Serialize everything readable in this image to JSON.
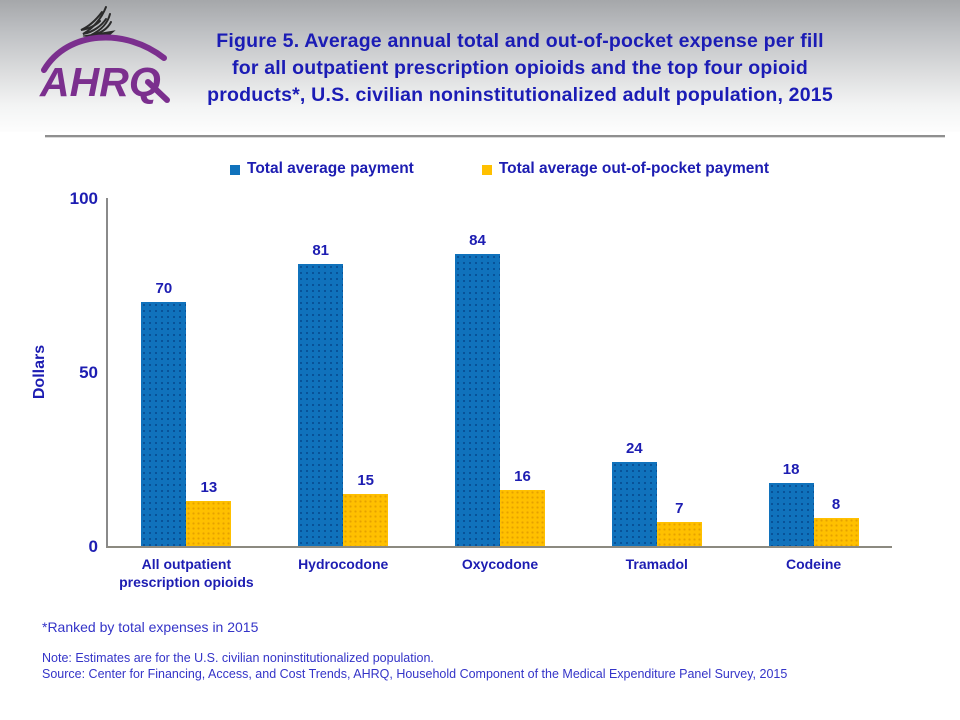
{
  "slide": {
    "title_lines": [
      "Figure 5. Average annual total and out-of-pocket expense per fill",
      "for all outpatient prescription opioids and the top four opioid",
      "products*, U.S. civilian noninstitutionalized adult population, 2015"
    ]
  },
  "logo": {
    "org_abbr": "AHRQ"
  },
  "legend": {
    "items": [
      {
        "label": "Total average payment",
        "color": "#1072bc"
      },
      {
        "label": "Total average out-of-pocket payment",
        "color": "#ffc000"
      }
    ]
  },
  "chart_data": {
    "type": "bar",
    "title": "Figure 5. Average annual total and out-of-pocket expense per fill for all outpatient prescription opioids and the top four opioid products*, U.S. civilian noninstitutionalized adult population, 2015",
    "categories": [
      "All outpatient prescription opioids",
      "Hydrocodone",
      "Oxycodone",
      "Tramadol",
      "Codeine"
    ],
    "series": [
      {
        "name": "Total average payment",
        "color": "#1072bc",
        "values": [
          70,
          81,
          84,
          24,
          18
        ]
      },
      {
        "name": "Total average out-of-pocket payment",
        "color": "#ffc000",
        "values": [
          13,
          15,
          16,
          7,
          8
        ]
      }
    ],
    "xlabel": "",
    "ylabel": "Dollars",
    "ylim": [
      0,
      100
    ],
    "yticks": [
      0,
      50,
      100
    ],
    "grid": false,
    "legend_position": "top",
    "data_labels": true
  },
  "footnotes": {
    "ranked": "*Ranked by total expenses in 2015",
    "note": "Note: Estimates are for the U.S. civilian noninstitutionalized population.",
    "source": "Source: Center for Financing, Access, and Cost Trends, AHRQ, Household Component of the Medical Expenditure Panel Survey, 2015"
  }
}
